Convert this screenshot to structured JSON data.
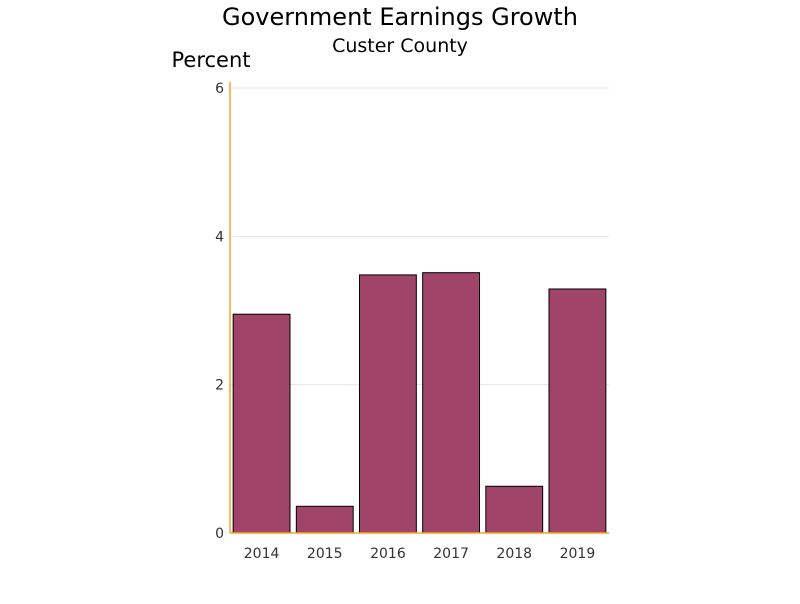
{
  "chart_data": {
    "type": "bar",
    "title": "Government Earnings Growth",
    "subtitle": "Custer County",
    "ylabel": "Percent",
    "xlabel": "",
    "categories": [
      "2014",
      "2015",
      "2016",
      "2017",
      "2018",
      "2019"
    ],
    "values": [
      2.95,
      0.36,
      3.48,
      3.51,
      0.63,
      3.29
    ],
    "ylim": [
      0,
      6
    ],
    "yticks": [
      "0",
      "2",
      "4",
      "6"
    ],
    "grid": true,
    "legend": "none",
    "colors": {
      "bar_fill": "#a0446a",
      "bar_stroke": "#000000",
      "axis": "#f5a623",
      "grid": "#e6e6e6"
    }
  }
}
